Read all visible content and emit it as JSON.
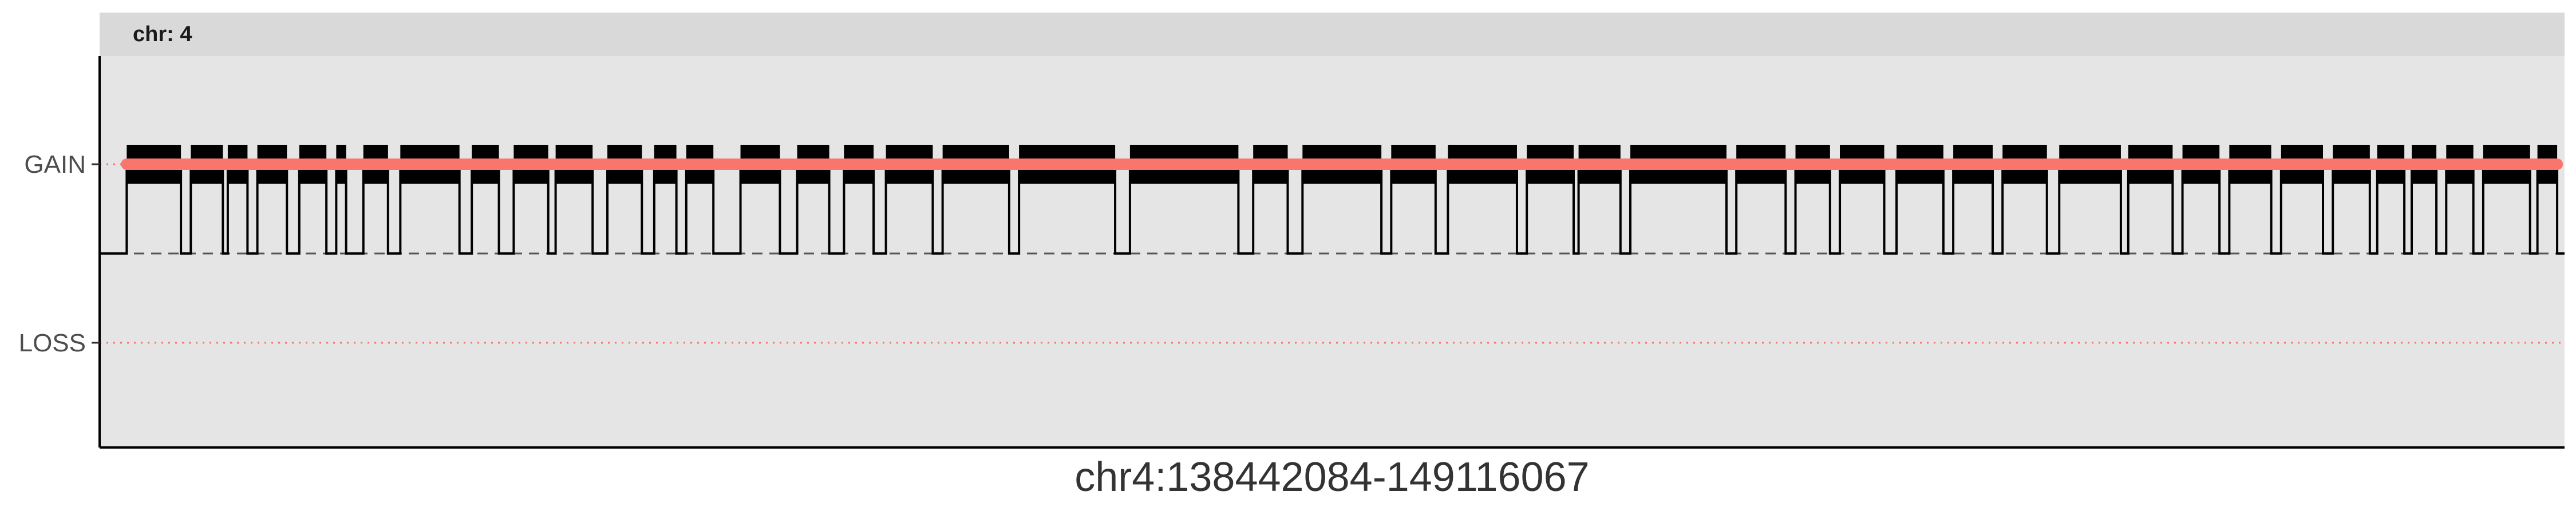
{
  "chart_data": {
    "type": "line",
    "facet_label": "chr: 4",
    "xlabel": "chr4:138442084-149116067",
    "y_categories": [
      "GAIN",
      "LOSS"
    ],
    "baseline": "dashed line between GAIN and LOSS",
    "segment_starts": [
      0.011,
      0.037,
      0.052,
      0.064,
      0.081,
      0.096,
      0.107,
      0.122,
      0.151,
      0.168,
      0.185,
      0.206,
      0.225,
      0.238,
      0.26,
      0.283,
      0.302,
      0.319,
      0.342,
      0.373,
      0.418,
      0.468,
      0.488,
      0.524,
      0.547,
      0.579,
      0.621,
      0.6,
      0.664,
      0.688,
      0.706,
      0.729,
      0.752,
      0.772,
      0.795,
      0.823,
      0.845,
      0.864,
      0.885,
      0.906,
      0.924,
      0.938,
      0.952,
      0.967,
      0.989
    ],
    "segment_ends": [
      0.033,
      0.05,
      0.06,
      0.076,
      0.092,
      0.1,
      0.117,
      0.146,
      0.162,
      0.182,
      0.2,
      0.22,
      0.234,
      0.249,
      0.276,
      0.296,
      0.314,
      0.338,
      0.369,
      0.412,
      0.462,
      0.482,
      0.52,
      0.542,
      0.575,
      0.598,
      0.66,
      0.617,
      0.684,
      0.702,
      0.724,
      0.748,
      0.768,
      0.79,
      0.82,
      0.841,
      0.86,
      0.881,
      0.902,
      0.921,
      0.935,
      0.948,
      0.963,
      0.986,
      0.997
    ],
    "highlight_band": {
      "state": "GAIN",
      "color": "#f8766d"
    },
    "colors": {
      "panel": "#e5e5e5",
      "strip": "#d9d9d9",
      "steps": "#000000",
      "dotted_ref": "#f8766d"
    }
  }
}
